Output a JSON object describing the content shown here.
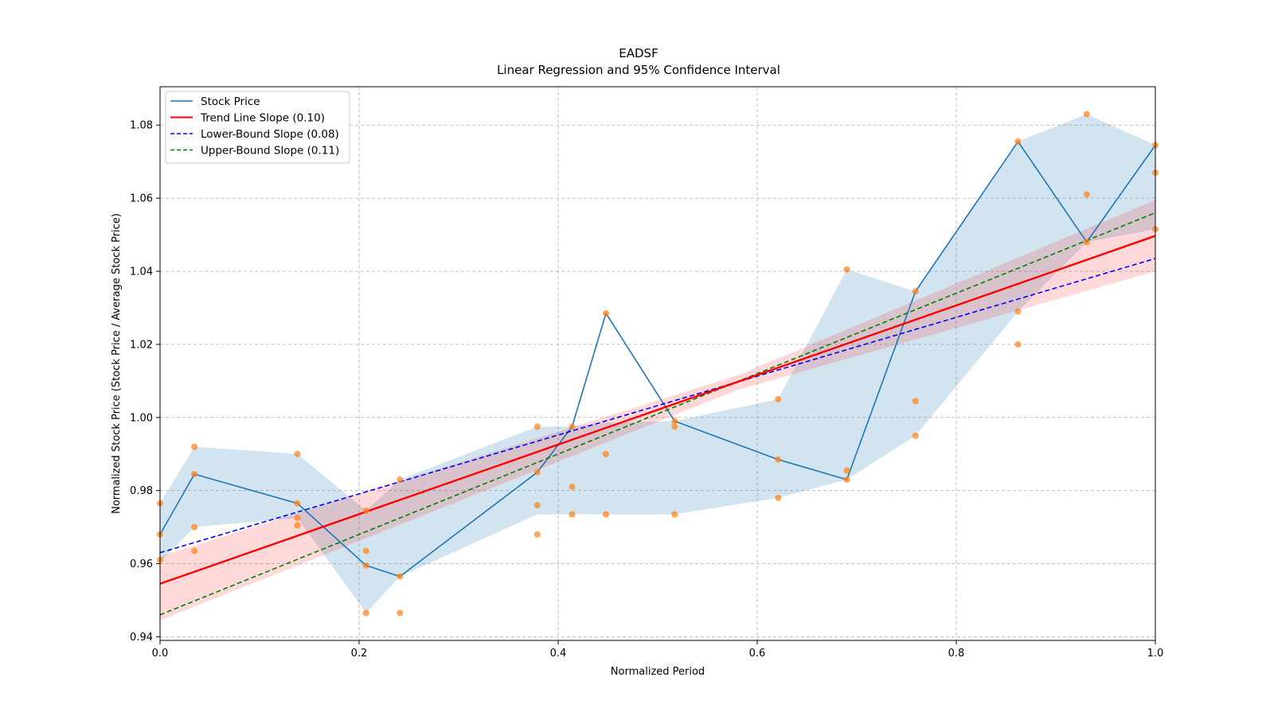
{
  "chart_data": {
    "type": "line",
    "title": "EADSF",
    "subtitle": "Linear Regression and 95% Confidence Interval",
    "xlabel": "Normalized Period",
    "ylabel": "Normalized Stock Price (Stock Price / Average Stock Price)",
    "xlim": [
      0.0,
      1.0
    ],
    "ylim": [
      0.939,
      1.0905
    ],
    "grid": true,
    "legend_position": "top-left",
    "x_ticks": [
      0.0,
      0.2,
      0.4,
      0.6,
      0.8,
      1.0
    ],
    "x_tick_labels": [
      "0.0",
      "0.2",
      "0.4",
      "0.6",
      "0.8",
      "1.0"
    ],
    "y_ticks": [
      0.94,
      0.96,
      0.98,
      1.0,
      1.02,
      1.04,
      1.06,
      1.08
    ],
    "y_tick_labels": [
      "0.94",
      "0.96",
      "0.98",
      "1.00",
      "1.02",
      "1.04",
      "1.06",
      "1.08"
    ],
    "legend": [
      {
        "label": "Stock Price",
        "color": "#1f77b4",
        "dash": false
      },
      {
        "label": "Trend Line Slope (0.10)",
        "color": "#ff0000",
        "dash": false
      },
      {
        "label": "Lower-Bound Slope (0.08)",
        "color": "#0000ff",
        "dash": true
      },
      {
        "label": "Upper-Bound Slope (0.11)",
        "color": "#008000",
        "dash": true
      }
    ],
    "series": [
      {
        "name": "Stock Price",
        "color": "#1f77b4",
        "x": [
          0.0,
          0.0345,
          0.138,
          0.207,
          0.241,
          0.379,
          0.414,
          0.448,
          0.517,
          0.621,
          0.69,
          0.759,
          0.862,
          0.931,
          1.0
        ],
        "y": [
          0.968,
          0.9845,
          0.9765,
          0.9595,
          0.9565,
          0.985,
          0.9975,
          1.0285,
          0.999,
          0.9885,
          0.983,
          1.0345,
          1.0755,
          1.048,
          1.0745
        ]
      }
    ],
    "band": {
      "color": "#1f77b4",
      "x": [
        0.0,
        0.0345,
        0.138,
        0.207,
        0.241,
        0.379,
        0.414,
        0.448,
        0.517,
        0.621,
        0.69,
        0.759,
        0.862,
        0.931,
        1.0
      ],
      "upper": [
        0.9765,
        0.992,
        0.99,
        0.9745,
        0.983,
        0.9975,
        0.9975,
        0.9985,
        0.999,
        1.005,
        1.0405,
        1.0345,
        1.0755,
        1.083,
        1.0745
      ],
      "lower": [
        0.9605,
        0.97,
        0.9725,
        0.9465,
        0.9565,
        0.9735,
        0.9735,
        0.9735,
        0.9735,
        0.978,
        0.983,
        0.995,
        1.029,
        1.048,
        1.0515
      ]
    },
    "scatter": {
      "color": "#ff7f0e",
      "points": [
        [
          0.0,
          0.9765
        ],
        [
          0.0,
          0.968
        ],
        [
          0.0,
          0.961
        ],
        [
          0.0345,
          0.992
        ],
        [
          0.0345,
          0.9845
        ],
        [
          0.0345,
          0.97
        ],
        [
          0.0345,
          0.9635
        ],
        [
          0.138,
          0.99
        ],
        [
          0.138,
          0.9765
        ],
        [
          0.138,
          0.9725
        ],
        [
          0.138,
          0.9705
        ],
        [
          0.207,
          0.9745
        ],
        [
          0.207,
          0.9635
        ],
        [
          0.207,
          0.9595
        ],
        [
          0.207,
          0.9465
        ],
        [
          0.241,
          0.983
        ],
        [
          0.241,
          0.9565
        ],
        [
          0.241,
          0.9465
        ],
        [
          0.379,
          0.9975
        ],
        [
          0.379,
          0.985
        ],
        [
          0.379,
          0.976
        ],
        [
          0.379,
          0.968
        ],
        [
          0.414,
          0.9975
        ],
        [
          0.414,
          0.981
        ],
        [
          0.414,
          0.9735
        ],
        [
          0.448,
          1.0285
        ],
        [
          0.448,
          0.99
        ],
        [
          0.448,
          0.9735
        ],
        [
          0.517,
          0.999
        ],
        [
          0.517,
          0.9975
        ],
        [
          0.517,
          0.9735
        ],
        [
          0.621,
          1.005
        ],
        [
          0.621,
          0.9885
        ],
        [
          0.621,
          0.978
        ],
        [
          0.69,
          1.0405
        ],
        [
          0.69,
          0.9855
        ],
        [
          0.69,
          0.983
        ],
        [
          0.759,
          1.0345
        ],
        [
          0.759,
          1.0045
        ],
        [
          0.759,
          0.995
        ],
        [
          0.862,
          1.0755
        ],
        [
          0.862,
          1.029
        ],
        [
          0.862,
          1.02
        ],
        [
          0.931,
          1.083
        ],
        [
          0.931,
          1.061
        ],
        [
          0.931,
          1.048
        ],
        [
          1.0,
          1.0745
        ],
        [
          1.0,
          1.067
        ],
        [
          1.0,
          1.0515
        ]
      ]
    },
    "trend_line": {
      "name": "Trend Line Slope (0.10)",
      "slope": 0.0952,
      "intercept": 0.9545,
      "color": "#ff0000"
    },
    "trend_ci": {
      "color": "#ff0000",
      "x": [
        0.0,
        0.58,
        1.0
      ],
      "upper": [
        0.962,
        1.0115,
        1.0595
      ],
      "lower": [
        0.9445,
        1.0075,
        1.04
      ]
    },
    "lower_bound_line": {
      "name": "Lower-Bound Slope (0.08)",
      "slope": 0.0805,
      "intercept": 0.963,
      "color": "#0000ff"
    },
    "upper_bound_line": {
      "name": "Upper-Bound Slope (0.11)",
      "slope": 0.11,
      "intercept": 0.946,
      "color": "#008000"
    }
  }
}
